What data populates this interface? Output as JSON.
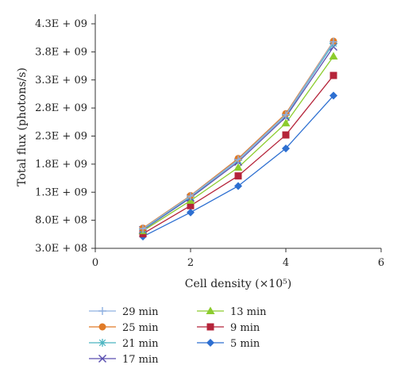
{
  "chart_data": {
    "type": "line",
    "title": "",
    "xlabel": "Cell density (×10⁵)",
    "ylabel": "Total flux (photons/s)",
    "xlim": [
      0,
      6
    ],
    "ylim": [
      300000000,
      4300000000
    ],
    "xticks": [
      0,
      2,
      4,
      6
    ],
    "xtick_labels": [
      "0",
      "2",
      "4",
      "6"
    ],
    "yticks": [
      300000000,
      800000000,
      1300000000,
      1800000000,
      2300000000,
      2800000000,
      3300000000,
      3800000000,
      4300000000
    ],
    "ytick_labels": [
      "3.0E + 08",
      "8.0E + 08",
      "1.3E + 09",
      "1.8E + 09",
      "2.3E + 09",
      "2.8E + 09",
      "3.3E + 09",
      "3.8E + 09",
      "4.3E + 09"
    ],
    "grid": false,
    "legend_position": "bottom",
    "x": [
      1,
      2,
      3,
      4,
      5
    ],
    "series": [
      {
        "name": "29 min",
        "color": "#8fb0e0",
        "marker": "plus",
        "values": [
          650000000,
          1230000000,
          1880000000,
          2680000000,
          3980000000
        ]
      },
      {
        "name": "25 min",
        "color": "#e07b27",
        "marker": "circle",
        "values": [
          660000000,
          1240000000,
          1900000000,
          2700000000,
          3990000000
        ]
      },
      {
        "name": "21 min",
        "color": "#4bb5c1",
        "marker": "star",
        "values": [
          640000000,
          1220000000,
          1870000000,
          2670000000,
          3950000000
        ]
      },
      {
        "name": "17 min",
        "color": "#5a4fb0",
        "marker": "x",
        "values": [
          630000000,
          1200000000,
          1840000000,
          2640000000,
          3890000000
        ]
      },
      {
        "name": "13 min",
        "color": "#8ccc2e",
        "marker": "triangle",
        "values": [
          610000000,
          1150000000,
          1740000000,
          2530000000,
          3720000000
        ]
      },
      {
        "name": "9 min",
        "color": "#b5243a",
        "marker": "square",
        "values": [
          560000000,
          1060000000,
          1590000000,
          2320000000,
          3380000000
        ]
      },
      {
        "name": "5 min",
        "color": "#2d6fd1",
        "marker": "diamond",
        "values": [
          510000000,
          940000000,
          1410000000,
          2080000000,
          3020000000
        ]
      }
    ]
  }
}
